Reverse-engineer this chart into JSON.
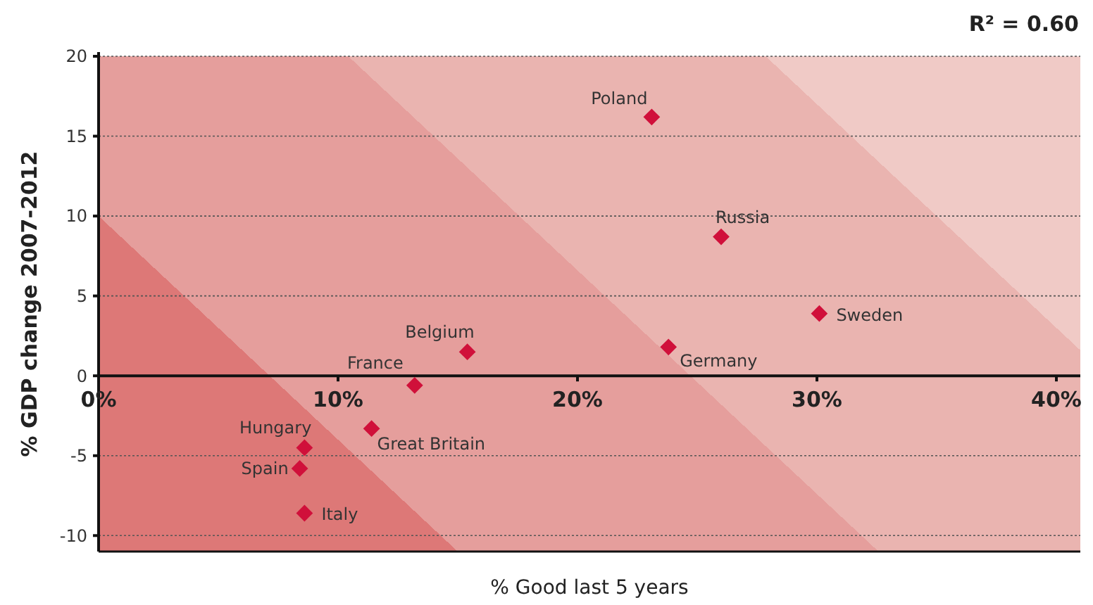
{
  "chart_data": {
    "type": "scatter",
    "xlabel": "% Good last 5 years",
    "ylabel": "% GDP change 2007-2012",
    "series": [
      {
        "color": "#d0103a",
        "x": [
          23.1,
          26.0,
          30.1,
          23.8,
          15.4,
          13.2,
          11.4,
          8.6,
          8.4,
          8.6
        ],
        "values": [
          16.2,
          8.7,
          3.9,
          1.8,
          1.5,
          -0.6,
          -3.3,
          -4.5,
          -5.8,
          -8.6
        ]
      }
    ],
    "marker": "diamond",
    "grid": "y",
    "legend": false,
    "xlim": [
      0,
      41
    ],
    "xticks": [
      {
        "value": 0,
        "label": "0%"
      },
      {
        "value": 10,
        "label": "10%"
      },
      {
        "value": 20,
        "label": "20%"
      },
      {
        "value": 30,
        "label": "30%"
      },
      {
        "value": 40,
        "label": "40%"
      }
    ],
    "ylim": [
      -11,
      20
    ],
    "yticks": [
      -10,
      -5,
      0,
      5,
      10,
      15,
      20
    ],
    "annotations": [
      {
        "text": "Poland",
        "x": 23.1,
        "y": 16.2
      },
      {
        "text": "Russia",
        "x": 26.0,
        "y": 8.7
      },
      {
        "text": "Sweden",
        "x": 30.1,
        "y": 3.9
      },
      {
        "text": "Germany",
        "x": 23.8,
        "y": 1.8
      },
      {
        "text": "Belgium",
        "x": 15.4,
        "y": 1.5
      },
      {
        "text": "France",
        "x": 13.2,
        "y": -0.6
      },
      {
        "text": "Great Britain",
        "x": 11.4,
        "y": -3.3
      },
      {
        "text": "Hungary",
        "x": 8.6,
        "y": -4.5
      },
      {
        "text": "Spain",
        "x": 8.4,
        "y": -5.8
      },
      {
        "text": "Italy",
        "x": 8.6,
        "y": -8.6
      },
      "R² = 0.60"
    ]
  }
}
